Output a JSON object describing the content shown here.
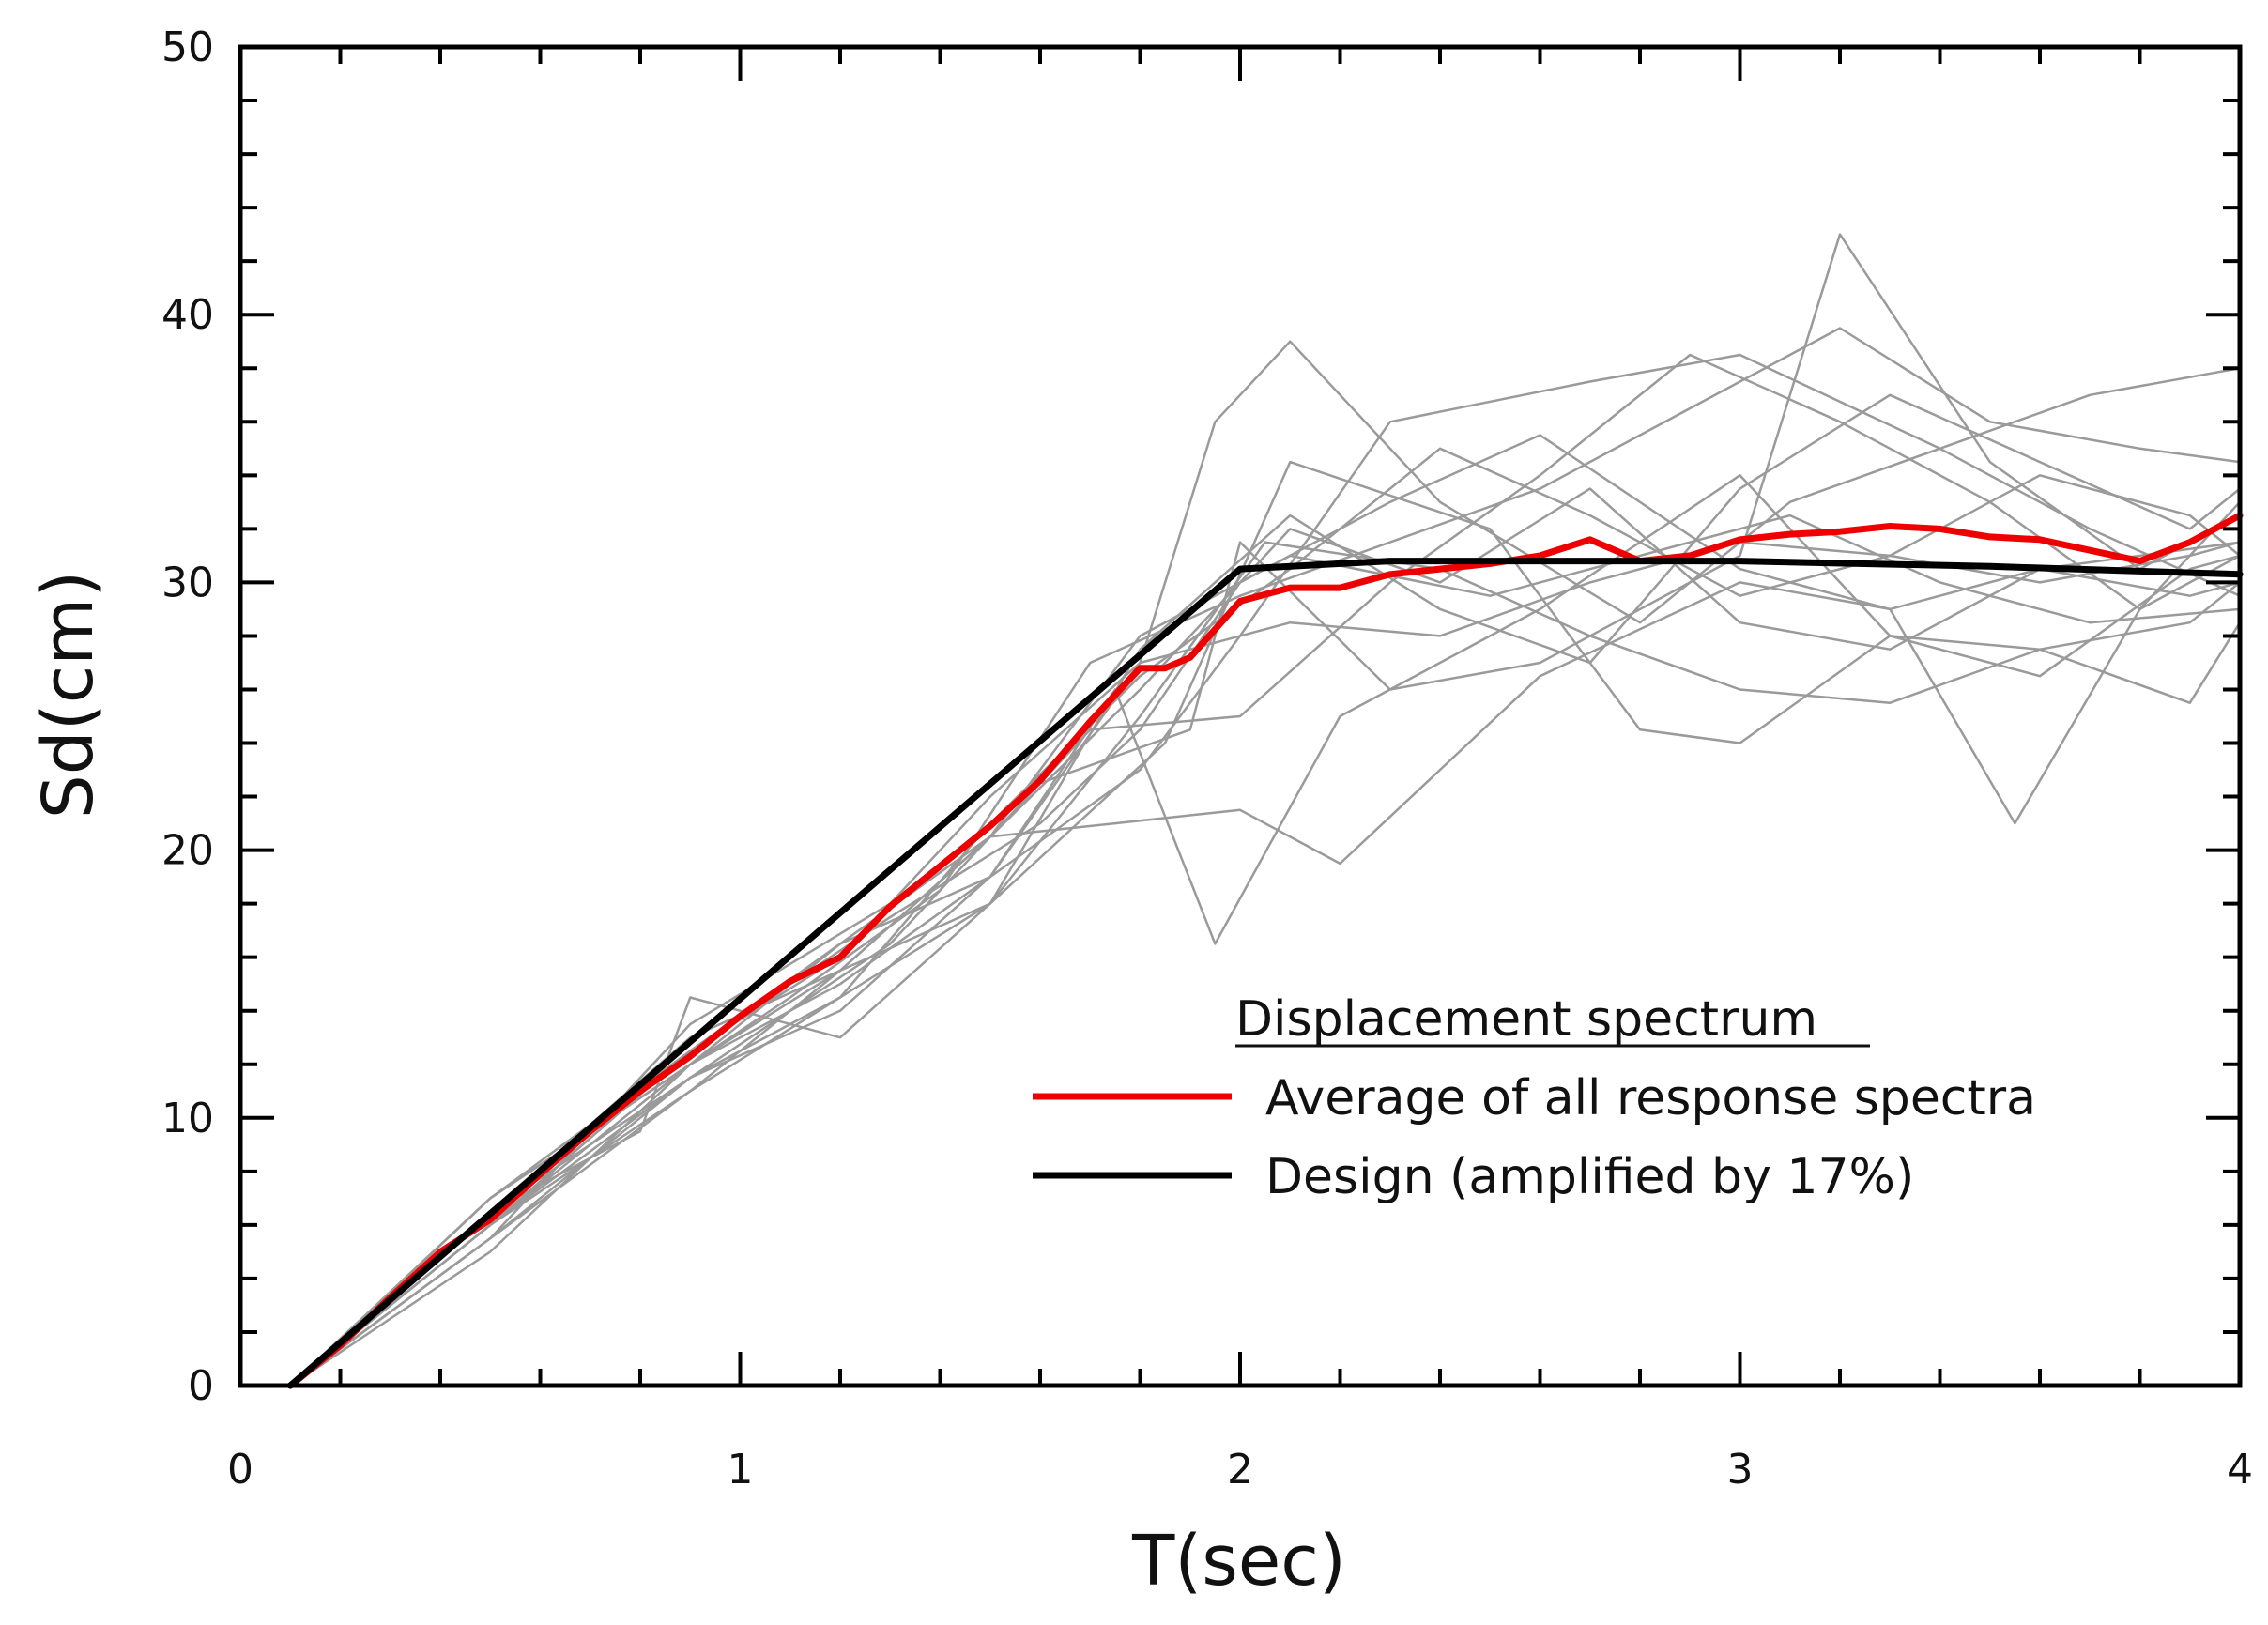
{
  "chart_data": {
    "type": "line",
    "xlabel": "T(sec)",
    "ylabel": "Sd(cm)",
    "xlim": [
      0,
      4
    ],
    "ylim": [
      0,
      50
    ],
    "x_ticks": [
      0,
      1,
      2,
      3,
      4
    ],
    "y_ticks": [
      0,
      10,
      20,
      30,
      40,
      50
    ],
    "x_minor_step": 0.2,
    "y_minor_step": 2,
    "grid": false,
    "colors": {
      "average": "#ee0000",
      "design": "#000000",
      "records": "#9a9a9a",
      "axis": "#000000"
    },
    "legend": {
      "title": "Displacement spectrum",
      "placement": "bottom-right",
      "entries": [
        {
          "label": "Average of all response spectra",
          "series": "average"
        },
        {
          "label": "Design (amplified by 17%)",
          "series": "design"
        }
      ]
    },
    "series": [
      {
        "name": "Average of all response spectra",
        "key": "average",
        "x": [
          0.1,
          0.2,
          0.3,
          0.4,
          0.5,
          0.6,
          0.7,
          0.8,
          0.9,
          1.0,
          1.1,
          1.2,
          1.3,
          1.4,
          1.5,
          1.6,
          1.7,
          1.8,
          1.85,
          1.9,
          2.0,
          2.1,
          2.2,
          2.3,
          2.4,
          2.5,
          2.6,
          2.7,
          2.8,
          2.9,
          3.0,
          3.1,
          3.2,
          3.3,
          3.4,
          3.5,
          3.6,
          3.7,
          3.8,
          3.9,
          4.0
        ],
        "y": [
          0,
          1.5,
          3.3,
          5.0,
          6.2,
          7.9,
          9.5,
          11.0,
          12.3,
          13.8,
          15.1,
          16.0,
          17.9,
          19.4,
          20.9,
          22.6,
          24.8,
          26.8,
          26.8,
          27.2,
          29.3,
          29.8,
          29.8,
          30.3,
          30.5,
          30.7,
          31.0,
          31.6,
          30.8,
          31.0,
          31.6,
          31.8,
          31.9,
          32.1,
          32.0,
          31.7,
          31.6,
          31.2,
          30.8,
          31.5,
          32.5
        ]
      },
      {
        "name": "Design (amplified by 17%)",
        "key": "design",
        "x": [
          0.1,
          2.0,
          2.3,
          3.0,
          3.5,
          4.0
        ],
        "y": [
          0,
          30.5,
          30.8,
          30.8,
          30.6,
          30.3
        ]
      }
    ],
    "records": [
      {
        "name": "record 1",
        "x": [
          0.1,
          0.5,
          0.9,
          1.3,
          1.6,
          1.8,
          2.0,
          2.3,
          2.6,
          3.0,
          3.3,
          3.6,
          4.0
        ],
        "y": [
          0,
          6.0,
          12.5,
          17.5,
          21.0,
          24.5,
          30.0,
          33.0,
          35.5,
          30.5,
          29.0,
          30.5,
          31.5
        ]
      },
      {
        "name": "record 2",
        "x": [
          0.1,
          0.5,
          0.9,
          1.2,
          1.5,
          1.8,
          1.95,
          2.1,
          2.4,
          2.8,
          3.1,
          3.4,
          3.7,
          4.0
        ],
        "y": [
          0,
          7.0,
          12.0,
          15.0,
          19.0,
          27.0,
          36.0,
          39.0,
          33.0,
          28.5,
          33.0,
          35.0,
          32.0,
          29.5
        ]
      },
      {
        "name": "record 3",
        "x": [
          0.1,
          0.5,
          0.9,
          1.3,
          1.6,
          1.9,
          2.0,
          2.3,
          2.6,
          3.0,
          3.2,
          3.5,
          3.8,
          4.0
        ],
        "y": [
          0,
          5.5,
          13.5,
          18.0,
          22.5,
          24.5,
          31.5,
          26.0,
          27.0,
          31.0,
          43.0,
          34.5,
          30.5,
          32.5
        ]
      },
      {
        "name": "record 4",
        "x": [
          0.1,
          0.5,
          0.9,
          1.2,
          1.5,
          1.75,
          1.95,
          2.2,
          2.6,
          3.0,
          3.3,
          3.6,
          3.9,
          4.0
        ],
        "y": [
          0,
          6.5,
          11.5,
          14.0,
          19.0,
          26.0,
          16.5,
          25.0,
          29.0,
          34.0,
          28.0,
          26.5,
          30.5,
          31.0
        ]
      },
      {
        "name": "record 5",
        "x": [
          0.1,
          0.5,
          0.9,
          1.2,
          1.5,
          1.75,
          2.0,
          2.2,
          2.6,
          3.0,
          3.3,
          3.55,
          3.8,
          4.0
        ],
        "y": [
          0,
          6.0,
          11.0,
          15.5,
          20.5,
          21.0,
          21.5,
          19.5,
          26.5,
          30.0,
          29.0,
          21.0,
          29.0,
          31.0
        ]
      },
      {
        "name": "record 6",
        "x": [
          0.1,
          0.5,
          0.9,
          1.2,
          1.5,
          1.8,
          2.0,
          2.3,
          2.7,
          3.0,
          3.4,
          3.7,
          4.0
        ],
        "y": [
          0,
          7.0,
          12.5,
          16.5,
          19.0,
          23.0,
          28.0,
          36.0,
          37.5,
          38.5,
          35.0,
          37.0,
          38.0
        ]
      },
      {
        "name": "record 7",
        "x": [
          0.1,
          0.5,
          0.9,
          1.2,
          1.5,
          1.85,
          2.1,
          2.5,
          2.8,
          3.0,
          3.3,
          3.6,
          3.9,
          4.0
        ],
        "y": [
          0,
          5.5,
          11.5,
          14.5,
          18.0,
          24.0,
          34.5,
          32.0,
          24.5,
          24.0,
          28.0,
          27.5,
          25.5,
          28.5
        ]
      },
      {
        "name": "record 8",
        "x": [
          0.1,
          0.5,
          0.9,
          1.1,
          1.4,
          1.7,
          2.0,
          2.3,
          2.6,
          2.9,
          3.2,
          3.5,
          3.8,
          4.0
        ],
        "y": [
          0,
          5.0,
          12.0,
          14.5,
          18.5,
          27.0,
          29.5,
          31.5,
          33.5,
          36.5,
          39.5,
          36.0,
          35.0,
          34.5
        ]
      },
      {
        "name": "record 9",
        "x": [
          0.1,
          0.5,
          0.9,
          1.3,
          1.7,
          2.0,
          2.3,
          2.6,
          2.9,
          3.2,
          3.5,
          3.8,
          4.0
        ],
        "y": [
          0,
          6.0,
          11.5,
          16.5,
          24.5,
          25.0,
          30.0,
          34.0,
          38.5,
          36.0,
          33.0,
          29.0,
          33.0
        ]
      },
      {
        "name": "record 10",
        "x": [
          0.1,
          0.5,
          0.8,
          0.9,
          1.2,
          1.5,
          1.8,
          2.1,
          2.4,
          2.7,
          3.0,
          3.3,
          3.6,
          3.9,
          4.0
        ],
        "y": [
          0,
          6.5,
          9.5,
          14.5,
          13.0,
          18.0,
          27.5,
          32.5,
          29.0,
          27.0,
          33.5,
          37.0,
          34.5,
          32.0,
          33.5
        ]
      },
      {
        "name": "record 11",
        "x": [
          0.1,
          0.5,
          0.9,
          1.2,
          1.5,
          1.8,
          2.05,
          2.4,
          2.7,
          3.0,
          3.3,
          3.6,
          3.9,
          4.0
        ],
        "y": [
          0,
          6.0,
          12.0,
          15.5,
          18.0,
          25.0,
          31.5,
          30.5,
          28.0,
          26.0,
          25.5,
          27.5,
          28.5,
          30.0
        ]
      },
      {
        "name": "record 12",
        "x": [
          0.1,
          0.5,
          0.9,
          1.2,
          1.5,
          1.8,
          2.1,
          2.5,
          2.8,
          3.1,
          3.4,
          3.7,
          4.0
        ],
        "y": [
          0,
          6.5,
          13.0,
          15.5,
          20.5,
          28.0,
          31.0,
          29.5,
          31.0,
          32.5,
          30.0,
          28.5,
          29.0
        ]
      },
      {
        "name": "record 13",
        "x": [
          0.1,
          0.5,
          0.9,
          1.2,
          1.5,
          1.8,
          2.1,
          2.4,
          2.7,
          3.0,
          3.3,
          3.6,
          3.9,
          4.0
        ],
        "y": [
          0,
          5.5,
          11.0,
          14.5,
          21.0,
          26.5,
          30.5,
          35.0,
          32.5,
          29.5,
          31.0,
          34.0,
          32.5,
          31.0
        ]
      },
      {
        "name": "record 14",
        "x": [
          0.1,
          0.5,
          0.9,
          1.2,
          1.5,
          1.8,
          2.1,
          2.4,
          2.7,
          3.0,
          3.3,
          3.6,
          3.9,
          4.0
        ],
        "y": [
          0,
          6.0,
          12.5,
          16.0,
          22.0,
          27.0,
          28.5,
          28.0,
          30.0,
          31.5,
          31.0,
          30.0,
          31.0,
          31.5
        ]
      },
      {
        "name": "record 15",
        "x": [
          0.1,
          0.5,
          0.9,
          1.2,
          1.5,
          1.8,
          2.1,
          2.4,
          2.7,
          3.0,
          3.3,
          3.6,
          3.9,
          4.0
        ],
        "y": [
          0,
          7.0,
          12.0,
          16.5,
          20.5,
          26.0,
          32.0,
          30.0,
          33.5,
          28.5,
          27.5,
          30.5,
          29.5,
          30.0
        ]
      }
    ]
  }
}
